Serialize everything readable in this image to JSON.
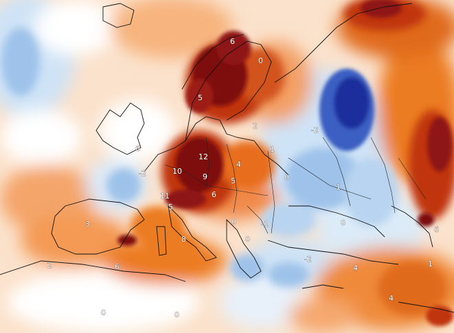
{
  "map": {
    "type": "temperature anomaly map",
    "region": "Europe",
    "colors": {
      "strong_negative": "#1f2f9c",
      "negative": "#5f8fd8",
      "slight_negative": "#cfe3f6",
      "neutral": "#ffffff",
      "slight_positive": "#f9c08f",
      "positive": "#ec7c23",
      "strong_positive": "#c0350f",
      "extreme_positive": "#7e0d0d",
      "coastline": "#111111"
    },
    "labels": [
      {
        "id": "l1",
        "text": "6"
      },
      {
        "id": "l2",
        "text": "0"
      },
      {
        "id": "l3",
        "text": "5"
      },
      {
        "id": "l4",
        "text": "-2"
      },
      {
        "id": "l5",
        "text": "6"
      },
      {
        "id": "l6",
        "text": "12"
      },
      {
        "id": "l7",
        "text": "10"
      },
      {
        "id": "l8",
        "text": "9"
      },
      {
        "id": "l9",
        "text": "4"
      },
      {
        "id": "l10",
        "text": "-2"
      },
      {
        "id": "l11",
        "text": "11"
      },
      {
        "id": "l12",
        "text": "5"
      },
      {
        "id": "l13",
        "text": "5"
      },
      {
        "id": "l14",
        "text": "6"
      },
      {
        "id": "l15",
        "text": "1"
      },
      {
        "id": "l16",
        "text": "0"
      },
      {
        "id": "l17",
        "text": "1"
      },
      {
        "id": "l18",
        "text": "3"
      },
      {
        "id": "l19",
        "text": "2"
      },
      {
        "id": "l20",
        "text": "-1"
      },
      {
        "id": "l21",
        "text": "8"
      },
      {
        "id": "l22",
        "text": "0"
      },
      {
        "id": "l23",
        "text": "0"
      },
      {
        "id": "l24",
        "text": "-2"
      },
      {
        "id": "l25",
        "text": "0"
      },
      {
        "id": "l26",
        "text": "4"
      },
      {
        "id": "l27",
        "text": "6"
      },
      {
        "id": "l28",
        "text": "2"
      },
      {
        "id": "l29",
        "text": "0"
      },
      {
        "id": "l30",
        "text": "0"
      },
      {
        "id": "l31",
        "text": "4"
      },
      {
        "id": "l32",
        "text": "1"
      },
      {
        "id": "l33",
        "text": "6"
      }
    ]
  }
}
